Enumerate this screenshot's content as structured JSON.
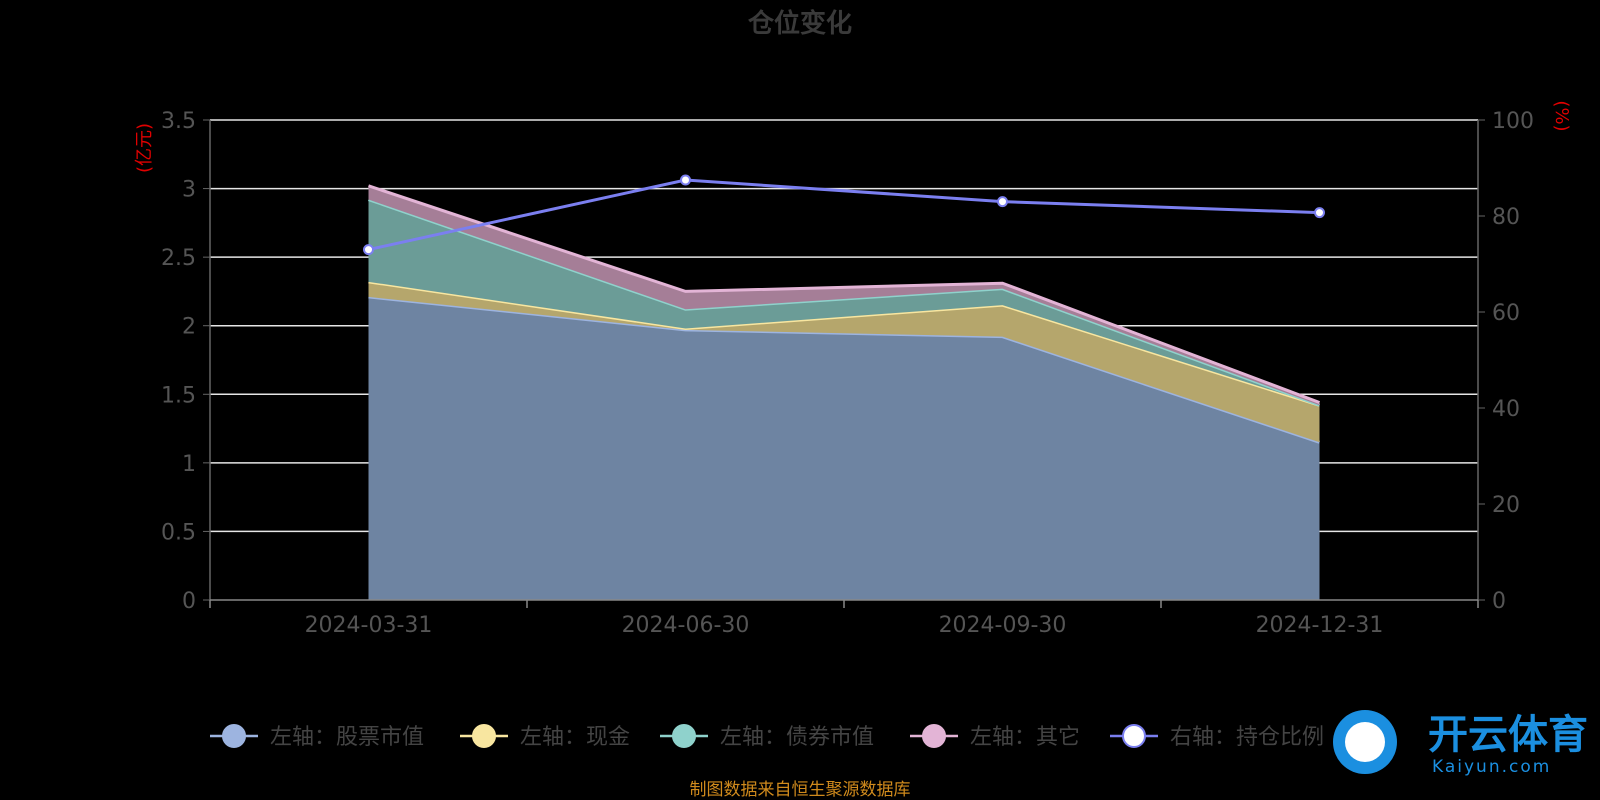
{
  "chart_data": {
    "type": "area",
    "title": "仓位变化",
    "categories": [
      "2024-03-31",
      "2024-06-30",
      "2024-09-30",
      "2024-12-31"
    ],
    "left_axis": {
      "unit": "(亿元)",
      "ylim": [
        0,
        3.5
      ],
      "ticks": [
        "0",
        "0.5",
        "1",
        "1.5",
        "2",
        "2.5",
        "3",
        "3.5"
      ]
    },
    "right_axis": {
      "unit": "(%)",
      "ylim": [
        0,
        100
      ],
      "ticks": [
        "0",
        "20",
        "40",
        "60",
        "80",
        "100"
      ]
    },
    "series": [
      {
        "name": "左轴：股票市值",
        "axis": "left",
        "stacked": true,
        "color": "#9db4e0",
        "fill": "#6e84a2",
        "values": [
          2.21,
          1.97,
          1.92,
          1.15
        ]
      },
      {
        "name": "左轴：现金",
        "axis": "left",
        "stacked": true,
        "color": "#f8e6a0",
        "fill": "#b5a66c",
        "values": [
          0.11,
          0.01,
          0.23,
          0.27
        ]
      },
      {
        "name": "左轴：债券市值",
        "axis": "left",
        "stacked": true,
        "color": "#8fd2cc",
        "fill": "#6b9c97",
        "values": [
          0.6,
          0.14,
          0.12,
          0.0
        ]
      },
      {
        "name": "左轴：其它",
        "axis": "left",
        "stacked": true,
        "color": "#e3b4d6",
        "fill": "#a57e97",
        "values": [
          0.1,
          0.13,
          0.04,
          0.02
        ]
      },
      {
        "name": "右轴：持仓比例",
        "axis": "right",
        "stacked": false,
        "color": "#7b7ff0",
        "values": [
          73,
          87.5,
          83,
          80.7
        ]
      }
    ],
    "grid": true,
    "legend_position": "bottom"
  },
  "footer": {
    "source": "制图数据来自恒生聚源数据库"
  },
  "watermark": {
    "brand": "开云体育",
    "site": "Kaiyun.com"
  }
}
